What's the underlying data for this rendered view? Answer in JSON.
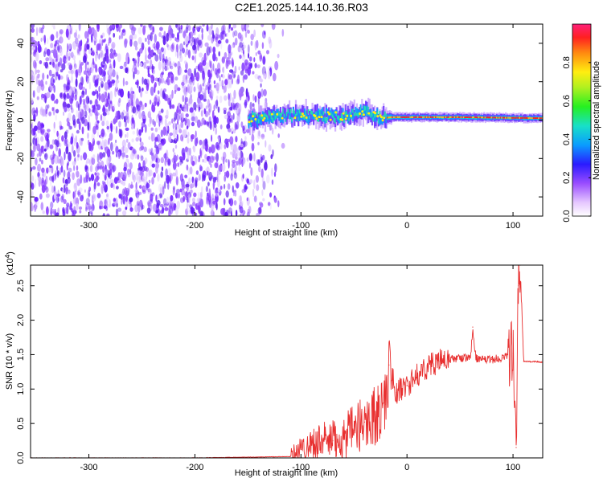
{
  "title": "C2E1.2025.144.10.36.R03",
  "chart_data": [
    {
      "type": "heatmap",
      "title": "C2E1.2025.144.10.36.R03",
      "xlabel": "Height of straight line (km)",
      "ylabel": "Frequency (Hz)",
      "xlim": [
        -355,
        128
      ],
      "ylim": [
        -50,
        50
      ],
      "x_ticks": [
        -300,
        -200,
        -100,
        0,
        100
      ],
      "y_ticks": [
        -40,
        -20,
        0,
        20,
        40
      ],
      "colorbar": {
        "label": "Normalized spectral amplitude",
        "range": [
          0,
          1
        ],
        "ticks": [
          "0.0",
          "0.2",
          "0.4",
          "0.6",
          "0.8"
        ]
      },
      "features": {
        "noise_region_x": [
          -355,
          -130
        ],
        "signal_band": [
          {
            "x": -150,
            "y": 0.0
          },
          {
            "x": -130,
            "y": 2.0
          },
          {
            "x": -100,
            "y": 2.5
          },
          {
            "x": -60,
            "y": 2.0
          },
          {
            "x": -40,
            "y": 4.0
          },
          {
            "x": -25,
            "y": 1.0
          },
          {
            "x": -15,
            "y": 1.5
          },
          {
            "x": 50,
            "y": 1.5
          },
          {
            "x": 128,
            "y": 1.0
          }
        ]
      }
    },
    {
      "type": "line",
      "xlabel": "Height of straight line (km)",
      "ylabel": "SNR (10 * v/v)",
      "scale_label": "(x10^4)",
      "xlim": [
        -355,
        128
      ],
      "ylim": [
        0,
        2.8
      ],
      "x_ticks": [
        -300,
        -200,
        -100,
        0,
        100
      ],
      "y_ticks": [
        "0.0",
        "0.5",
        "1.0",
        "1.5",
        "2.0",
        "2.5"
      ],
      "series": [
        {
          "color": "#e83030",
          "x": [
            -355,
            -200,
            -110,
            -100,
            -90,
            -80,
            -70,
            -60,
            -50,
            -40,
            -30,
            -20,
            -17,
            -10,
            0,
            10,
            20,
            30,
            40,
            50,
            60,
            62,
            65,
            70,
            80,
            90,
            95,
            100,
            103,
            105,
            107,
            110,
            120,
            128
          ],
          "y": [
            0.0,
            0.0,
            0.02,
            0.12,
            0.22,
            0.26,
            0.25,
            0.3,
            0.4,
            0.52,
            0.62,
            0.78,
            1.35,
            0.95,
            1.05,
            1.2,
            1.34,
            1.4,
            1.43,
            1.45,
            1.45,
            1.9,
            1.45,
            1.42,
            1.43,
            1.45,
            1.5,
            1.52,
            0.15,
            2.5,
            2.8,
            1.4,
            1.4,
            1.39
          ]
        }
      ]
    }
  ]
}
